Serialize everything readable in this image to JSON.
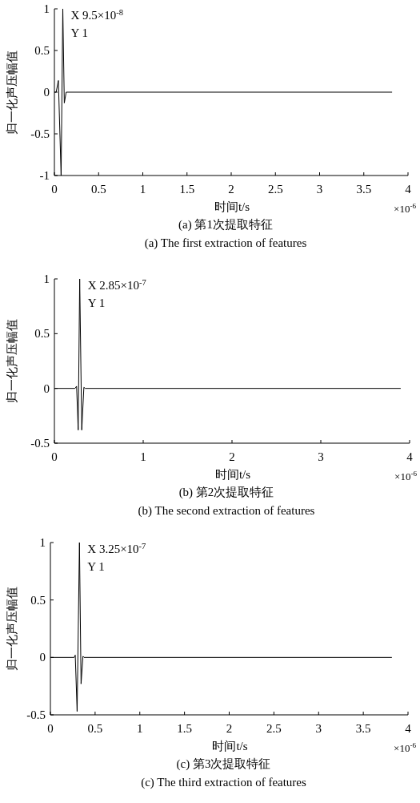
{
  "chart_data": [
    {
      "type": "line",
      "title": "(a) 第1次提取特征",
      "subtitle": "(a) The first extraction of features",
      "xlabel": "时间t/s",
      "ylabel": "归一化声压幅值",
      "x": [
        0,
        0.02,
        0.045,
        0.076,
        0.095,
        0.112,
        0.133,
        3.82
      ],
      "series": [
        {
          "color": "#000000",
          "values": [
            0,
            0,
            0.14,
            -1,
            1,
            -0.13,
            0,
            0
          ]
        }
      ],
      "xlim": [
        0,
        4
      ],
      "ylim": [
        -1,
        1
      ],
      "xticks": [
        0,
        0.5,
        1,
        1.5,
        2,
        2.5,
        3,
        3.5,
        4
      ],
      "yticks": [
        -1,
        -0.5,
        0,
        0.5,
        1
      ],
      "annotations": [
        {
          "text": "X 9.5×10$^{-8}$",
          "x": 0.095,
          "y": 1
        },
        {
          "text": "Y 1",
          "x": 0.095,
          "y": 1
        },
        "×10$^{-6}$"
      ]
    },
    {
      "type": "line",
      "title": "(b) 第2次提取特征",
      "subtitle": "(b) The second extraction of features",
      "xlabel": "时间t/s",
      "ylabel": "归一化声压幅值",
      "x": [
        0,
        0.232,
        0.25,
        0.268,
        0.285,
        0.308,
        0.332,
        0.347,
        3.9
      ],
      "series": [
        {
          "color": "#000000",
          "values": [
            0,
            0,
            0.02,
            -0.38,
            1,
            -0.38,
            0.01,
            0,
            0
          ]
        }
      ],
      "xlim": [
        0,
        4
      ],
      "ylim": [
        -0.5,
        1
      ],
      "xticks": [
        0,
        1,
        2,
        3,
        4
      ],
      "yticks": [
        -0.5,
        0,
        0.5,
        1
      ],
      "annotations": [
        {
          "text": "X 2.85×10$^{-7}$",
          "x": 0.285,
          "y": 1
        },
        {
          "text": "Y 1",
          "x": 0.285,
          "y": 1
        },
        "×10$^{-6}$"
      ]
    },
    {
      "type": "line",
      "title": "(c) 第3次提取特征",
      "subtitle": "(c) The third extraction of features",
      "xlabel": "时间t/s",
      "ylabel": "归一化声压幅值",
      "x": [
        0,
        0.266,
        0.278,
        0.299,
        0.325,
        0.343,
        0.364,
        0.376,
        3.82
      ],
      "series": [
        {
          "color": "#000000",
          "values": [
            0,
            0,
            0.02,
            -0.47,
            1,
            -0.23,
            0.01,
            0,
            0
          ]
        }
      ],
      "xlim": [
        0,
        4
      ],
      "ylim": [
        -0.5,
        1
      ],
      "xticks": [
        0,
        0.5,
        1,
        1.5,
        2,
        2.5,
        3,
        3.5,
        4
      ],
      "yticks": [
        -0.5,
        0,
        0.5,
        1
      ],
      "annotations": [
        {
          "text": "X 3.25×10$^{-7}$",
          "x": 0.325,
          "y": 1
        },
        {
          "text": "Y 1",
          "x": 0.325,
          "y": 1
        },
        "×10$^{-6}$"
      ]
    }
  ]
}
